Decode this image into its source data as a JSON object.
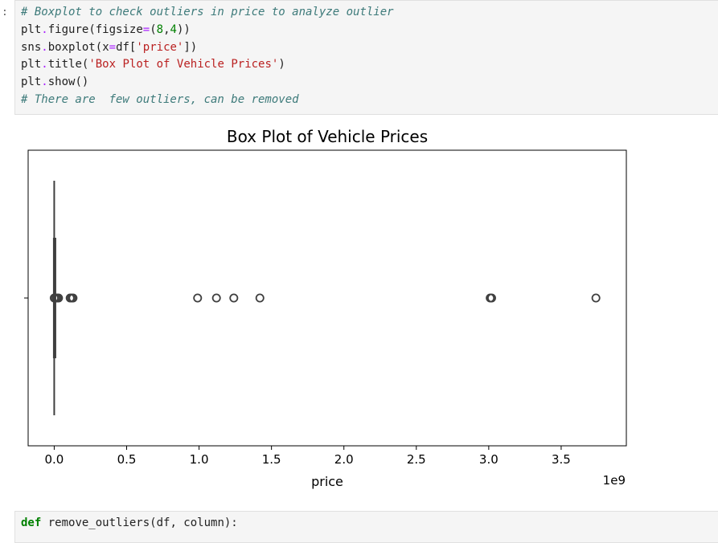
{
  "cell1": {
    "prompt": ":",
    "lines": [
      [
        {
          "t": "# Boxplot to check outliers in price to analyze outlier",
          "c": "cm"
        }
      ],
      [
        {
          "t": "plt",
          "c": "fn"
        },
        {
          "t": ".",
          "c": "op"
        },
        {
          "t": "figure",
          "c": "fn"
        },
        {
          "t": "(",
          "c": "fn"
        },
        {
          "t": "figsize",
          "c": "fn"
        },
        {
          "t": "=",
          "c": "op"
        },
        {
          "t": "(",
          "c": "fn"
        },
        {
          "t": "8",
          "c": "nm"
        },
        {
          "t": ",",
          "c": "fn"
        },
        {
          "t": "4",
          "c": "nm"
        },
        {
          "t": "))",
          "c": "fn"
        }
      ],
      [
        {
          "t": "sns",
          "c": "fn"
        },
        {
          "t": ".",
          "c": "op"
        },
        {
          "t": "boxplot",
          "c": "fn"
        },
        {
          "t": "(",
          "c": "fn"
        },
        {
          "t": "x",
          "c": "fn"
        },
        {
          "t": "=",
          "c": "op"
        },
        {
          "t": "df[",
          "c": "fn"
        },
        {
          "t": "'price'",
          "c": "str"
        },
        {
          "t": "])",
          "c": "fn"
        }
      ],
      [
        {
          "t": "plt",
          "c": "fn"
        },
        {
          "t": ".",
          "c": "op"
        },
        {
          "t": "title",
          "c": "fn"
        },
        {
          "t": "(",
          "c": "fn"
        },
        {
          "t": "'Box Plot of Vehicle Prices'",
          "c": "str"
        },
        {
          "t": ")",
          "c": "fn"
        }
      ],
      [
        {
          "t": "plt",
          "c": "fn"
        },
        {
          "t": ".",
          "c": "op"
        },
        {
          "t": "show",
          "c": "fn"
        },
        {
          "t": "()",
          "c": "fn"
        }
      ],
      [
        {
          "t": "# There are  few outliers, can be removed",
          "c": "cm"
        }
      ]
    ]
  },
  "cell2": {
    "lines": [
      [
        {
          "t": "def",
          "c": "kw"
        },
        {
          "t": " remove_outliers(df, column):",
          "c": "fn"
        }
      ]
    ]
  },
  "chart_data": {
    "type": "box",
    "title": "Box Plot of Vehicle Prices",
    "xlabel": "price",
    "offset_label": "1e9",
    "xlim": [
      -0.18,
      3.95
    ],
    "xticks": [
      0.0,
      0.5,
      1.0,
      1.5,
      2.0,
      2.5,
      3.0,
      3.5
    ],
    "xtick_labels": [
      "0.0",
      "0.5",
      "1.0",
      "1.5",
      "2.0",
      "2.5",
      "3.0",
      "3.5"
    ],
    "box": {
      "q1": 0.0,
      "median": 0.0,
      "q3": 0.002,
      "whisker_low": 0.0,
      "whisker_high": 0.004
    },
    "outliers": [
      0.0,
      0.01,
      0.02,
      0.03,
      0.11,
      0.12,
      0.13,
      0.99,
      1.12,
      1.24,
      1.42,
      3.01,
      3.02,
      3.74
    ],
    "colors": {
      "box_edge": "#3f3f3f",
      "frame": "#000000"
    }
  }
}
